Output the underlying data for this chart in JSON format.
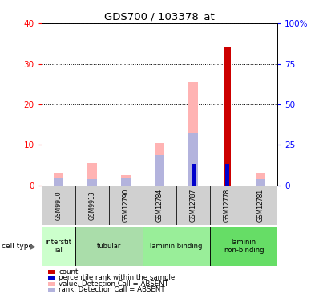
{
  "title": "GDS700 / 103378_at",
  "samples": [
    "GSM9910",
    "GSM9913",
    "GSM12790",
    "GSM12784",
    "GSM12787",
    "GSM12778",
    "GSM12781"
  ],
  "cell_type_groups": [
    {
      "label": "interstit\nial",
      "span": [
        0,
        1
      ],
      "color": "#ccffcc"
    },
    {
      "label": "tubular",
      "span": [
        1,
        3
      ],
      "color": "#aaffaa"
    },
    {
      "label": "laminin binding",
      "span": [
        3,
        5
      ],
      "color": "#99ee99"
    },
    {
      "label": "laminin\nnon-binding",
      "span": [
        5,
        7
      ],
      "color": "#66dd66"
    }
  ],
  "count_values": [
    0,
    0,
    0,
    0,
    0,
    34,
    0
  ],
  "percentile_values": [
    0,
    0,
    0,
    0,
    13,
    13,
    0
  ],
  "value_absent": [
    3,
    5.5,
    2.5,
    10.5,
    25.5,
    0,
    3
  ],
  "rank_absent": [
    2,
    1.5,
    2.0,
    7.5,
    13.0,
    0,
    1.5
  ],
  "ylim_left": [
    0,
    40
  ],
  "ylim_right": [
    0,
    100
  ],
  "yticks_left": [
    0,
    10,
    20,
    30,
    40
  ],
  "yticks_right": [
    0,
    25,
    50,
    75,
    100
  ],
  "ytick_labels_right": [
    "0",
    "25",
    "50",
    "75",
    "100%"
  ],
  "color_count": "#cc0000",
  "color_percentile": "#0000cc",
  "color_value_absent": "#ffb3b3",
  "color_rank_absent": "#b3b3dd",
  "legend_items": [
    {
      "color": "#cc0000",
      "label": "count"
    },
    {
      "color": "#0000cc",
      "label": "percentile rank within the sample"
    },
    {
      "color": "#ffb3b3",
      "label": "value, Detection Call = ABSENT"
    },
    {
      "color": "#b3b3dd",
      "label": "rank, Detection Call = ABSENT"
    }
  ],
  "fig_width": 3.98,
  "fig_height": 3.66,
  "dpi": 100
}
